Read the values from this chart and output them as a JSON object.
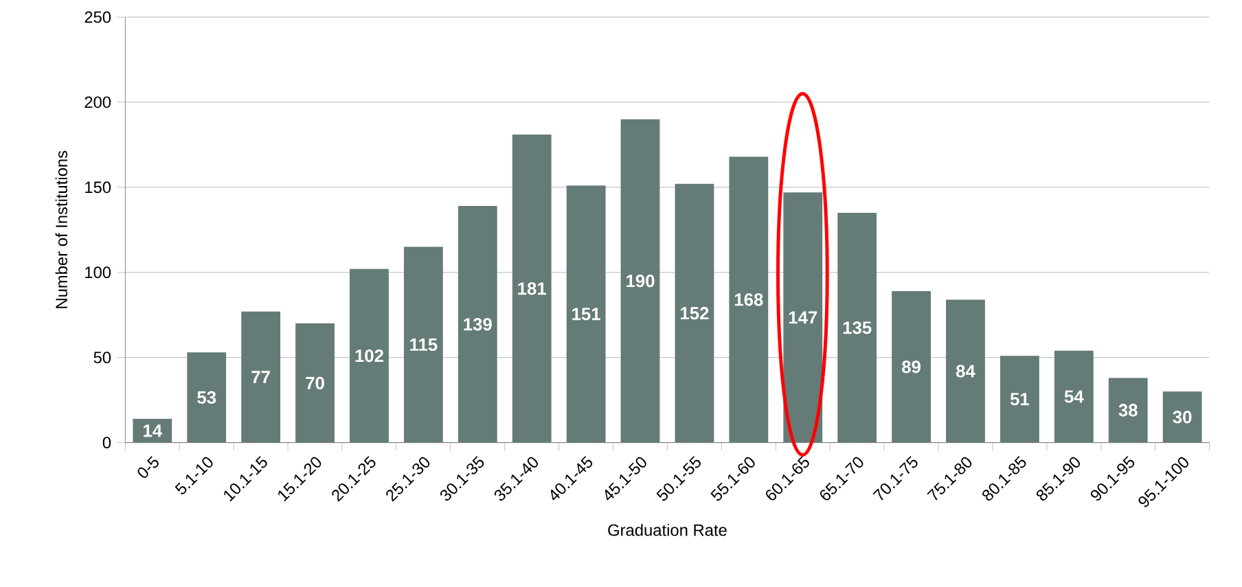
{
  "chart_data": {
    "type": "bar",
    "xlabel": "Graduation Rate",
    "ylabel": "Number of Institutions",
    "categories": [
      "0-5",
      "5.1-10",
      "10.1-15",
      "15.1-20",
      "20.1-25",
      "25.1-30",
      "30.1-35",
      "35.1-40",
      "40.1-45",
      "45.1-50",
      "50.1-55",
      "55.1-60",
      "60.1-65",
      "65.1-70",
      "70.1-75",
      "75.1-80",
      "80.1-85",
      "85.1-90",
      "90.1-95",
      "95.1-100"
    ],
    "values": [
      14,
      53,
      77,
      70,
      102,
      115,
      139,
      181,
      151,
      190,
      152,
      168,
      147,
      135,
      89,
      84,
      51,
      54,
      38,
      30
    ],
    "color": "#657b78",
    "ylim": [
      0,
      250
    ],
    "yticks": [
      0,
      50,
      100,
      150,
      200,
      250
    ],
    "grid": "y",
    "data_labels": true
  }
}
